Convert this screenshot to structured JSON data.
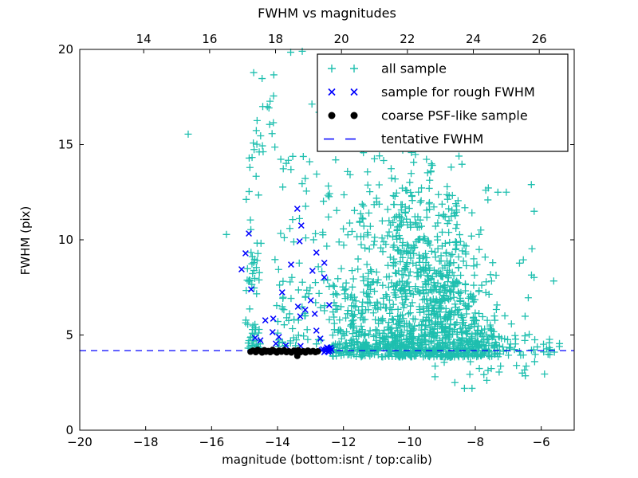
{
  "chart_data": {
    "type": "scatter",
    "title": "FWHM vs magnitudes",
    "xlabel": "magnitude (bottom:isnt / top:calib)",
    "ylabel": "FWHM (pix)",
    "xlim": [
      -20,
      -5
    ],
    "ylim": [
      0,
      20
    ],
    "grid": false,
    "x_ticks_bottom": {
      "values": [
        -20,
        -18,
        -16,
        -14,
        -12,
        -10,
        -8,
        -6
      ],
      "labels": [
        "−20",
        "−18",
        "−16",
        "−14",
        "−12",
        "−10",
        "−8",
        "−6"
      ]
    },
    "x_ticks_top": {
      "values": [
        14,
        16,
        18,
        20,
        22,
        24,
        26
      ],
      "labels": [
        "14",
        "16",
        "18",
        "20",
        "22",
        "24",
        "26"
      ],
      "calib_minus_isnt_offset": 32.06
    },
    "y_ticks": {
      "values": [
        0,
        5,
        10,
        15,
        20
      ],
      "labels": [
        "0",
        "5",
        "10",
        "15",
        "20"
      ]
    },
    "tentative_fwhm_value": 4.18,
    "colors": {
      "all_sample": "#1ebfaf",
      "rough_fwhm": "#0000ff",
      "psf_like": "#000000",
      "tentative_line": "#0000ff",
      "axes": "#000000",
      "background": "#ffffff"
    },
    "legend": {
      "position": "upper-right-inside",
      "entries": [
        {
          "label": "all sample",
          "marker": "plus",
          "color": "#1ebfaf"
        },
        {
          "label": "sample for rough FWHM",
          "marker": "x",
          "color": "#0000ff"
        },
        {
          "label": "coarse PSF-like sample",
          "marker": "dot",
          "color": "#000000"
        },
        {
          "label": "tentative FWHM",
          "marker": "dash",
          "color": "#0000ff"
        }
      ]
    },
    "series": [
      {
        "name": "all sample",
        "marker": "plus",
        "color": "#1ebfaf",
        "clusters": [
          [
            -14.95,
            -14.55,
            4.3,
            9.5,
            42,
            1.4
          ],
          [
            -14.9,
            -14.45,
            9.5,
            14.6,
            10,
            1
          ],
          [
            -14.75,
            -14.1,
            14.6,
            19.8,
            20,
            1
          ],
          [
            -14.05,
            -13.45,
            4.4,
            8.5,
            30,
            1.3
          ],
          [
            -14.1,
            -13.5,
            8.5,
            15.6,
            14,
            1
          ],
          [
            -13.45,
            -12.45,
            4.5,
            11.5,
            40,
            1.3
          ],
          [
            -13.4,
            -12.4,
            11.5,
            14.8,
            12,
            1
          ],
          [
            -13.3,
            -11.6,
            16.0,
            19.9,
            9,
            1
          ],
          [
            -12.45,
            -11.5,
            3.85,
            7.0,
            95,
            1.5
          ],
          [
            -12.45,
            -11.5,
            7.0,
            11.0,
            28,
            1.2
          ],
          [
            -12.4,
            -11.4,
            11.0,
            14.2,
            8,
            1
          ],
          [
            -11.5,
            -10.5,
            3.85,
            8.0,
            150,
            1.5
          ],
          [
            -11.5,
            -10.45,
            8.0,
            12.0,
            45,
            1.2
          ],
          [
            -11.6,
            -10.4,
            12.0,
            15.0,
            10,
            1
          ],
          [
            -10.5,
            -9.4,
            3.85,
            9.5,
            290,
            1.5
          ],
          [
            -10.5,
            -9.35,
            9.5,
            13.2,
            80,
            1.2
          ],
          [
            -10.6,
            -9.3,
            13.2,
            15.2,
            14,
            1
          ],
          [
            -9.4,
            -8.5,
            3.85,
            8.5,
            270,
            1.5
          ],
          [
            -9.45,
            -8.45,
            8.5,
            12.2,
            60,
            1.2
          ],
          [
            -9.5,
            -8.4,
            12.2,
            14.4,
            10,
            1
          ],
          [
            -8.5,
            -7.9,
            3.85,
            7.2,
            110,
            1.4
          ],
          [
            -8.55,
            -7.85,
            7.2,
            10.0,
            22,
            1.2
          ],
          [
            -8.6,
            -7.8,
            10.0,
            12.7,
            6,
            1
          ],
          [
            -7.9,
            -7.3,
            3.85,
            6.2,
            55,
            1.3
          ],
          [
            -7.95,
            -7.25,
            6.2,
            9.2,
            10,
            1
          ],
          [
            -7.8,
            -6.9,
            11.8,
            12.8,
            4,
            1
          ],
          [
            -12.4,
            -10.0,
            3.95,
            4.6,
            60,
            1
          ],
          [
            -10.0,
            -8.0,
            3.95,
            4.6,
            40,
            1
          ],
          [
            -8.0,
            -6.6,
            3.9,
            4.6,
            26,
            1
          ],
          [
            -6.6,
            -5.35,
            3.9,
            4.7,
            14,
            1
          ],
          [
            -9.3,
            -5.8,
            2.8,
            3.85,
            16,
            1
          ],
          [
            -7.4,
            -5.6,
            4.7,
            8.0,
            18,
            1.3
          ],
          [
            -7.3,
            -6.1,
            8.0,
            11.5,
            6,
            1
          ],
          [
            -15.0,
            -14.5,
            4.3,
            5.8,
            10,
            1
          ]
        ],
        "points": [
          [
            -16.71,
            15.55
          ],
          [
            -15.55,
            10.28
          ],
          [
            -14.95,
            12.12
          ],
          [
            -13.6,
            19.85
          ],
          [
            -13.25,
            19.9
          ],
          [
            -8.33,
            2.2
          ],
          [
            -8.1,
            2.2
          ],
          [
            -8.62,
            2.5
          ],
          [
            -7.65,
            2.62
          ],
          [
            -6.3,
            12.9
          ],
          [
            -7.06,
            12.5
          ],
          [
            -5.45,
            4.4
          ],
          [
            -5.6,
            4.1
          ],
          [
            -6.2,
            3.6
          ],
          [
            -6.75,
            3.4
          ],
          [
            -5.9,
            2.95
          ]
        ]
      },
      {
        "name": "sample for rough FWHM",
        "marker": "x",
        "color": "#0000ff",
        "points": [
          [
            -14.87,
            10.33
          ],
          [
            -14.97,
            9.29
          ],
          [
            -15.09,
            8.45
          ],
          [
            -14.8,
            7.4
          ],
          [
            -13.4,
            11.63
          ],
          [
            -13.28,
            10.75
          ],
          [
            -13.33,
            9.92
          ],
          [
            -13.59,
            8.7
          ],
          [
            -12.82,
            9.33
          ],
          [
            -12.58,
            8.79
          ],
          [
            -12.94,
            8.37
          ],
          [
            -12.58,
            8.03
          ],
          [
            -13.86,
            7.24
          ],
          [
            -12.99,
            6.82
          ],
          [
            -13.38,
            6.49
          ],
          [
            -12.43,
            6.57
          ],
          [
            -13.16,
            6.32
          ],
          [
            -12.87,
            6.11
          ],
          [
            -13.31,
            5.98
          ],
          [
            -14.37,
            5.77
          ],
          [
            -14.13,
            5.86
          ],
          [
            -14.15,
            5.15
          ],
          [
            -13.96,
            4.9
          ],
          [
            -12.82,
            5.23
          ],
          [
            -12.7,
            4.81
          ],
          [
            -14.68,
            4.85
          ],
          [
            -14.52,
            4.72
          ],
          [
            -14.05,
            4.55
          ],
          [
            -13.75,
            4.45
          ],
          [
            -13.3,
            4.42
          ],
          [
            -12.62,
            4.25
          ],
          [
            -12.55,
            4.18
          ],
          [
            -12.48,
            4.3
          ],
          [
            -12.42,
            4.15
          ],
          [
            -12.36,
            4.22
          ],
          [
            -12.5,
            4.35
          ],
          [
            -12.58,
            4.1
          ],
          [
            -12.44,
            4.28
          ],
          [
            -12.66,
            4.2
          ],
          [
            -12.39,
            4.33
          ],
          [
            -12.53,
            4.24
          ],
          [
            -12.47,
            4.12
          ]
        ]
      },
      {
        "name": "coarse PSF-like sample",
        "marker": "dot",
        "color": "#000000",
        "points": [
          [
            -14.82,
            4.12
          ],
          [
            -14.74,
            4.18
          ],
          [
            -14.66,
            4.1
          ],
          [
            -14.6,
            4.22
          ],
          [
            -14.52,
            4.15
          ],
          [
            -14.47,
            4.08
          ],
          [
            -14.4,
            4.2
          ],
          [
            -14.35,
            4.12
          ],
          [
            -14.28,
            4.16
          ],
          [
            -14.22,
            4.1
          ],
          [
            -14.15,
            4.22
          ],
          [
            -14.08,
            4.14
          ],
          [
            -14.02,
            4.08
          ],
          [
            -13.95,
            4.18
          ],
          [
            -13.88,
            4.12
          ],
          [
            -13.8,
            4.2
          ],
          [
            -13.73,
            4.1
          ],
          [
            -13.66,
            4.15
          ],
          [
            -13.58,
            4.08
          ],
          [
            -13.5,
            4.18
          ],
          [
            -13.44,
            4.12
          ],
          [
            -13.37,
            4.2
          ],
          [
            -13.3,
            4.1
          ],
          [
            -13.22,
            4.15
          ],
          [
            -13.15,
            4.08
          ],
          [
            -13.08,
            4.18
          ],
          [
            -13.0,
            4.12
          ],
          [
            -12.92,
            4.16
          ],
          [
            -12.85,
            4.1
          ],
          [
            -12.78,
            4.14
          ],
          [
            -13.4,
            3.9
          ]
        ]
      },
      {
        "name": "tentative FWHM",
        "type": "hline",
        "y": 4.18,
        "color": "#0000ff",
        "dash": [
          8,
          6
        ]
      }
    ]
  }
}
